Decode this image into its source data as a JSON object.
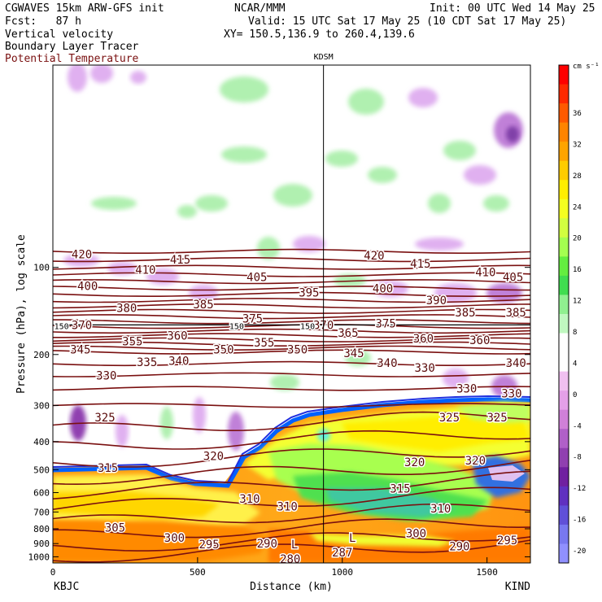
{
  "header": {
    "model_line": "CGWAVES 15km ARW-GFS init",
    "org": "NCAR/MMM",
    "init": "Init: 00 UTC Wed 14 May 25",
    "fcst": "Fcst:   87 h",
    "valid": "Valid: 15 UTC Sat 17 May 25 (10 CDT Sat 17 May 25)",
    "field1": "Vertical velocity",
    "xy": "XY= 150.5,136.9 to 260.4,139.6",
    "field2": "Boundary Layer Tracer",
    "field3": "Potential Temperature",
    "field3_color": "#7a1010"
  },
  "chart_data": {
    "type": "heatmap",
    "title": "",
    "xlabel": "Distance (km)",
    "ylabel": "Pressure (hPa), log scale",
    "x_range": [
      0,
      1650
    ],
    "x_ticks": [
      0,
      500,
      1000,
      1500
    ],
    "y_scale": "log",
    "y_range": [
      1050,
      20
    ],
    "y_ticks": [
      100,
      200,
      300,
      400,
      500,
      600,
      700,
      800,
      900,
      1000
    ],
    "start_label": "KBJC",
    "end_label": "KIND",
    "marker_label": "KDSM",
    "marker_x": 935,
    "colorbar": {
      "units": "cm s⁻¹",
      "labels": [
        "36",
        "32",
        "28",
        "24",
        "20",
        "16",
        "12",
        "8",
        "4",
        "0",
        "-4",
        "-8",
        "-12",
        "-16",
        "-20"
      ],
      "colors": [
        "#ff0000",
        "#ff2a00",
        "#ff5a00",
        "#ff8400",
        "#ffa400",
        "#ffcc00",
        "#ffee00",
        "#f4ff20",
        "#d2ff40",
        "#a4ff50",
        "#64ee40",
        "#40dd50",
        "#90f090",
        "#c0f8c0",
        "#ffffff",
        "#ffffff",
        "#f0c0f0",
        "#e4a0e8",
        "#d080d8",
        "#b060c8",
        "#9040b0",
        "#7020a0",
        "#6030c0",
        "#6050d8",
        "#7878f0",
        "#9090ff"
      ]
    },
    "theta_labels": [
      {
        "v": "420",
        "x": 100,
        "p": 90
      },
      {
        "v": "415",
        "x": 440,
        "p": 94
      },
      {
        "v": "420",
        "x": 1110,
        "p": 91
      },
      {
        "v": "410",
        "x": 320,
        "p": 102
      },
      {
        "v": "405",
        "x": 705,
        "p": 108
      },
      {
        "v": "415",
        "x": 1270,
        "p": 97
      },
      {
        "v": "410",
        "x": 1495,
        "p": 104
      },
      {
        "v": "405",
        "x": 1590,
        "p": 108
      },
      {
        "v": "400",
        "x": 120,
        "p": 116
      },
      {
        "v": "395",
        "x": 885,
        "p": 122
      },
      {
        "v": "400",
        "x": 1140,
        "p": 118
      },
      {
        "v": "380",
        "x": 255,
        "p": 138
      },
      {
        "v": "385",
        "x": 520,
        "p": 134
      },
      {
        "v": "390",
        "x": 1325,
        "p": 130
      },
      {
        "v": "385",
        "x": 1425,
        "p": 143
      },
      {
        "v": "385",
        "x": 1600,
        "p": 143
      },
      {
        "v": "370",
        "x": 100,
        "p": 158
      },
      {
        "v": "375",
        "x": 690,
        "p": 150
      },
      {
        "v": "370",
        "x": 935,
        "p": 158
      },
      {
        "v": "375",
        "x": 1150,
        "p": 156
      },
      {
        "v": "150",
        "x": 30,
        "p": 158
      },
      {
        "v": "150",
        "x": 635,
        "p": 158
      },
      {
        "v": "150",
        "x": 880,
        "p": 158
      },
      {
        "v": "365",
        "x": 1020,
        "p": 168
      },
      {
        "v": "360",
        "x": 430,
        "p": 172
      },
      {
        "v": "355",
        "x": 275,
        "p": 180
      },
      {
        "v": "355",
        "x": 730,
        "p": 182
      },
      {
        "v": "360",
        "x": 1280,
        "p": 176
      },
      {
        "v": "360",
        "x": 1475,
        "p": 178
      },
      {
        "v": "345",
        "x": 95,
        "p": 192
      },
      {
        "v": "350",
        "x": 590,
        "p": 192
      },
      {
        "v": "350",
        "x": 845,
        "p": 192
      },
      {
        "v": "345",
        "x": 1040,
        "p": 198
      },
      {
        "v": "335",
        "x": 325,
        "p": 212
      },
      {
        "v": "340",
        "x": 435,
        "p": 210
      },
      {
        "v": "340",
        "x": 1155,
        "p": 214
      },
      {
        "v": "340",
        "x": 1600,
        "p": 214
      },
      {
        "v": "330",
        "x": 1285,
        "p": 222
      },
      {
        "v": "330",
        "x": 185,
        "p": 236
      },
      {
        "v": "330",
        "x": 1430,
        "p": 262
      },
      {
        "v": "330",
        "x": 1585,
        "p": 272
      },
      {
        "v": "325",
        "x": 180,
        "p": 330
      },
      {
        "v": "325",
        "x": 1370,
        "p": 330
      },
      {
        "v": "325",
        "x": 1535,
        "p": 330
      },
      {
        "v": "320",
        "x": 555,
        "p": 448
      },
      {
        "v": "320",
        "x": 1250,
        "p": 470
      },
      {
        "v": "320",
        "x": 1460,
        "p": 465
      },
      {
        "v": "315",
        "x": 190,
        "p": 492
      },
      {
        "v": "315",
        "x": 1200,
        "p": 580
      },
      {
        "v": "310",
        "x": 680,
        "p": 630
      },
      {
        "v": "310",
        "x": 810,
        "p": 670
      },
      {
        "v": "310",
        "x": 1340,
        "p": 680
      },
      {
        "v": "305",
        "x": 215,
        "p": 792
      },
      {
        "v": "300",
        "x": 420,
        "p": 860
      },
      {
        "v": "300",
        "x": 1255,
        "p": 830
      },
      {
        "v": "295",
        "x": 540,
        "p": 905
      },
      {
        "v": "295",
        "x": 1570,
        "p": 875
      },
      {
        "v": "290",
        "x": 740,
        "p": 900
      },
      {
        "v": "290",
        "x": 1405,
        "p": 920
      },
      {
        "v": "280",
        "x": 820,
        "p": 1015
      },
      {
        "v": "287",
        "x": 1000,
        "p": 965
      },
      {
        "v": "L",
        "x": 835,
        "p": 905
      },
      {
        "v": "L",
        "x": 1035,
        "p": 860
      }
    ]
  }
}
